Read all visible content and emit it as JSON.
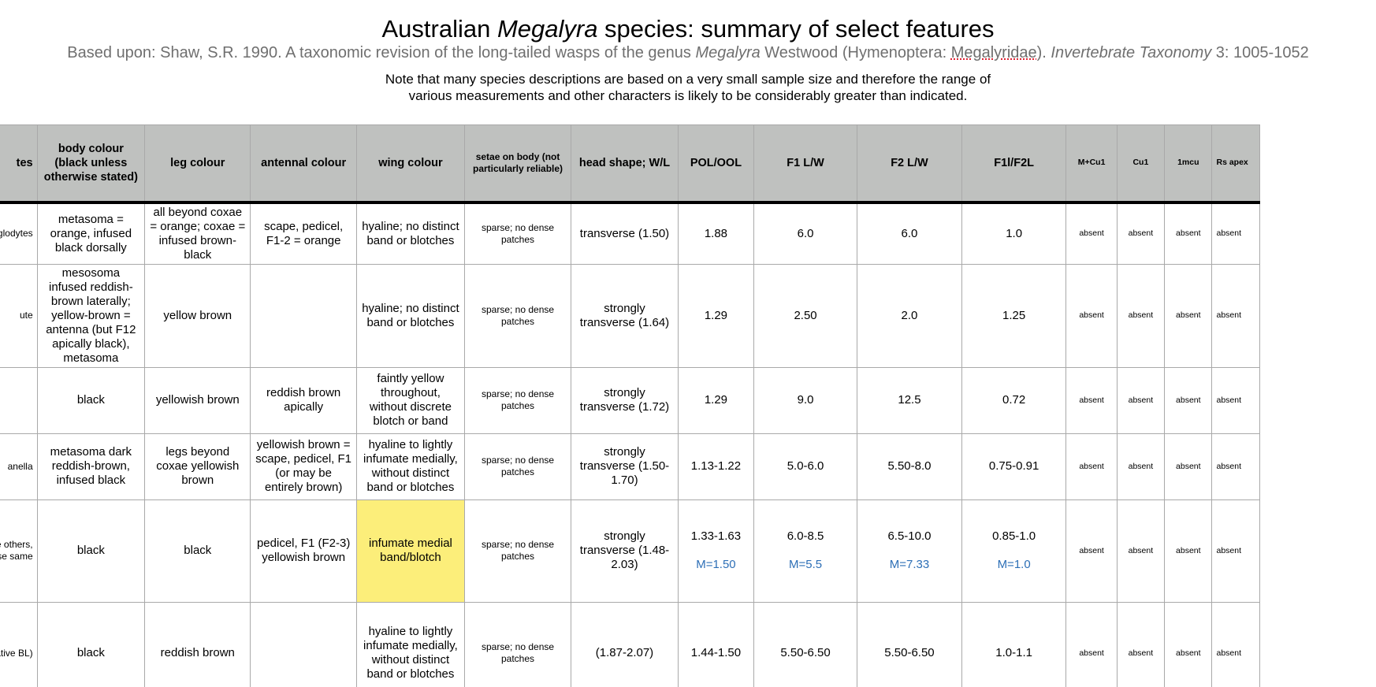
{
  "header": {
    "title_pre": "Australian ",
    "title_italic": "Megalyra",
    "title_post": " species: summary of select features",
    "subtitle_pre": "Based upon: Shaw, S.R. 1990. A taxonomic revision of the long-tailed wasps of the genus ",
    "subtitle_italic1": "Megalyra",
    "subtitle_mid": " Westwood (Hymenoptera: ",
    "subtitle_underlined": "Megalyridae",
    "subtitle_mid2": "). ",
    "subtitle_italic2": "Invertebrate Taxonomy",
    "subtitle_post": " 3: 1005-1052",
    "note": "Note that many species descriptions are based on a very small sample size and therefore the range of various measurements and other characters is likely to be considerably greater than indicated."
  },
  "columns": [
    "tes",
    "body colour (black unless otherwise stated)",
    "leg colour",
    "antennal colour",
    "wing colour",
    "setae on body (not particularly reliable)",
    "head shape; W/L",
    "POL/OOL",
    "F1 L/W",
    "F2 L/W",
    "F1l/F2L",
    "M+Cu1",
    "Cu1",
    "1mcu",
    "Rs apex"
  ],
  "rows": [
    {
      "notes": "oglodytes",
      "body": "metasoma = orange, infused black dorsally",
      "leg": "all beyond coxae = orange; coxae = infused brown-black",
      "antenna": "scape, pedicel, F1-2 = orange",
      "wing": "hyaline; no distinct band or blotches",
      "setae": "sparse; no dense patches",
      "head": "transverse (1.50)",
      "pol": "1.88",
      "pol_m": "",
      "f1": "6.0",
      "f1_m": "",
      "f2": "6.0",
      "f2_m": "",
      "f1f2": "1.0",
      "f1f2_m": "",
      "mcu1": "absent",
      "cu1": "absent",
      "mcu": "absent",
      "rs": "absent"
    },
    {
      "notes": "ute",
      "body": "mesosoma infused reddish-brown laterally; yellow-brown = antenna (but F12 apically black), metasoma",
      "leg": "yellow brown",
      "antenna": "",
      "wing": "hyaline; no distinct band or blotches",
      "setae": "sparse; no dense patches",
      "head": "strongly transverse (1.64)",
      "pol": "1.29",
      "pol_m": "",
      "f1": "2.50",
      "f1_m": "",
      "f2": "2.0",
      "f2_m": "",
      "f1f2": "1.25",
      "f1f2_m": "",
      "mcu1": "absent",
      "cu1": "absent",
      "mcu": "absent",
      "rs": "absent"
    },
    {
      "notes": "",
      "body": "black",
      "leg": "yellowish brown",
      "antenna": "reddish brown apically",
      "wing": "faintly yellow throughout, without discrete blotch or band",
      "setae": "sparse; no dense patches",
      "head": "strongly transverse (1.72)",
      "pol": "1.29",
      "pol_m": "",
      "f1": "9.0",
      "f1_m": "",
      "f2": "12.5",
      "f2_m": "",
      "f1f2": "0.72",
      "f1f2_m": "",
      "mcu1": "absent",
      "cu1": "absent",
      "mcu": "absent",
      "rs": "absent"
    },
    {
      "notes": "anella",
      "body": "metasoma dark reddish-brown, infused black",
      "leg": "legs beyond coxae yellowish brown",
      "antenna": "yellowish brown = scape, pedicel, F1 (or may be entirely brown)",
      "wing": "hyaline to lightly infumate medially, without distinct band or blotches",
      "setae": "sparse; no dense patches",
      "head": "strongly transverse (1.50-1.70)",
      "pol": "1.13-1.22",
      "pol_m": "",
      "f1": "5.0-6.0",
      "f1_m": "",
      "f2": "5.50-8.0",
      "f2_m": "",
      "f1f2": "0.75-0.91",
      "f1f2_m": "",
      "mcu1": "absent",
      "cu1": "absent",
      "mcu": "absent",
      "rs": "absent"
    },
    {
      "notes": "d by Riek at Bay was the others, wise same",
      "body": "black",
      "leg": "black",
      "antenna": "pedicel, F1 (F2-3) yellowish brown",
      "wing": "infumate medial band/blotch",
      "setae": "sparse; no dense patches",
      "head": "strongly transverse (1.48-2.03)",
      "pol": "1.33-1.63",
      "pol_m": "M=1.50",
      "f1": "6.0-8.5",
      "f1_m": "M=5.5",
      "f2": "6.5-10.0",
      "f2_m": "M=7.33",
      "f1f2": "0.85-1.0",
      "f1f2_m": "M=1.0",
      "mcu1": "absent",
      "cu1": "absent",
      "mcu": "absent",
      "rs": "absent"
    },
    {
      "notes": "an extremely itor (relative BL)",
      "body": "black",
      "leg": "reddish brown",
      "antenna": "",
      "wing": "hyaline to lightly infumate medially, without distinct band or blotches",
      "setae": "sparse; no dense patches",
      "head": "(1.87-2.07)",
      "pol": "1.44-1.50",
      "pol_m": "",
      "f1": "5.50-6.50",
      "f1_m": "",
      "f2": "5.50-6.50",
      "f2_m": "",
      "f1f2": "1.0-1.1",
      "f1f2_m": "",
      "mcu1": "absent",
      "cu1": "absent",
      "mcu": "absent",
      "rs": "absent"
    }
  ],
  "colors": {
    "header_bg": "#bfc1bf",
    "highlight": "#fcee7a",
    "mean_text": "#2d6fb6",
    "subtitle": "#6f6f6f"
  }
}
